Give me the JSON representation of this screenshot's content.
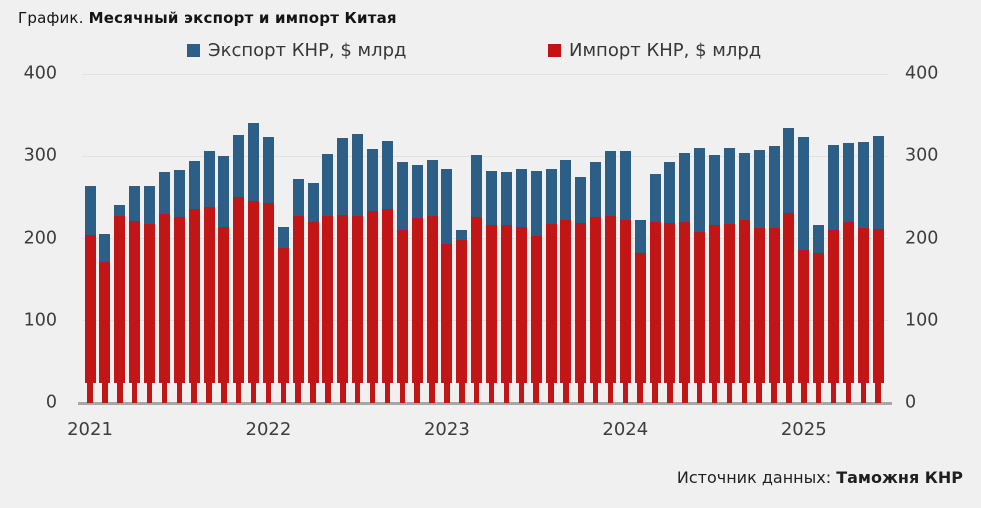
{
  "title": {
    "prefix": "График.",
    "main": "Месячный экспорт и импорт Китая"
  },
  "legend": {
    "export": {
      "label": "Экспорт КНР, $ млрд",
      "color": "#2d5e86"
    },
    "import": {
      "label": "Импорт КНР, $ млрд",
      "color": "#c41212"
    }
  },
  "source": {
    "prefix": "Источник данных:",
    "name": "Таможня КНР"
  },
  "colors": {
    "background": "#f0f0f0",
    "gridline": "#e2e2e2",
    "axis_line": "#a6a6a6",
    "export_bar": "#2d5e86",
    "import_bar": "#c21616",
    "tick_text": "#3d3d3d"
  },
  "chart_data": {
    "type": "bar",
    "subtype": "overlaid-columns (import drawn in front of export)",
    "title": "Месячный экспорт и импорт Китая",
    "xlabel": "",
    "ylabel": "$ млрд",
    "ylim": [
      0,
      400
    ],
    "y_ticks": [
      0,
      100,
      200,
      300,
      400
    ],
    "y_axis_sides": "both",
    "grid": "horizontal",
    "legend_position": "top",
    "x": [
      "2021-01",
      "2021-02",
      "2021-03",
      "2021-04",
      "2021-05",
      "2021-06",
      "2021-07",
      "2021-08",
      "2021-09",
      "2021-10",
      "2021-11",
      "2021-12",
      "2022-01",
      "2022-02",
      "2022-03",
      "2022-04",
      "2022-05",
      "2022-06",
      "2022-07",
      "2022-08",
      "2022-09",
      "2022-10",
      "2022-11",
      "2022-12",
      "2023-01",
      "2023-02",
      "2023-03",
      "2023-04",
      "2023-05",
      "2023-06",
      "2023-07",
      "2023-08",
      "2023-09",
      "2023-10",
      "2023-11",
      "2023-12",
      "2024-01",
      "2024-02",
      "2024-03",
      "2024-04",
      "2024-05",
      "2024-06",
      "2024-07",
      "2024-08",
      "2024-09",
      "2024-10",
      "2024-11",
      "2024-12",
      "2025-01",
      "2025-02",
      "2025-03",
      "2025-04",
      "2025-05",
      "2025-06"
    ],
    "x_tick_labels": [
      "2021",
      "2022",
      "2023",
      "2024",
      "2025"
    ],
    "x_tick_month_index": [
      0,
      12,
      24,
      36,
      48
    ],
    "series": [
      {
        "name": "Экспорт КНР, $ млрд",
        "color": "#2d5e86",
        "values": [
          264,
          205,
          241,
          264,
          264,
          281,
          283,
          294,
          306,
          300,
          326,
          340,
          323,
          214,
          272,
          268,
          303,
          322,
          327,
          309,
          318,
          293,
          289,
          296,
          285,
          210,
          302,
          282,
          281,
          285,
          282,
          285,
          296,
          275,
          293,
          307,
          306,
          222,
          279,
          293,
          304,
          310,
          301,
          310,
          304,
          308,
          312,
          335,
          324,
          216,
          314,
          316,
          317,
          325
        ]
      },
      {
        "name": "Импорт КНР, $ млрд",
        "color": "#c21616",
        "values": [
          204,
          171,
          228,
          221,
          218,
          230,
          226,
          236,
          238,
          214,
          251,
          246,
          243,
          188,
          227,
          220,
          227,
          229,
          228,
          234,
          236,
          210,
          225,
          227,
          193,
          198,
          226,
          216,
          216,
          214,
          203,
          218,
          222,
          219,
          226,
          228,
          222,
          182,
          220,
          219,
          220,
          208,
          217,
          218,
          223,
          213,
          213,
          231,
          186,
          183,
          211,
          220,
          213,
          212
        ]
      }
    ]
  }
}
